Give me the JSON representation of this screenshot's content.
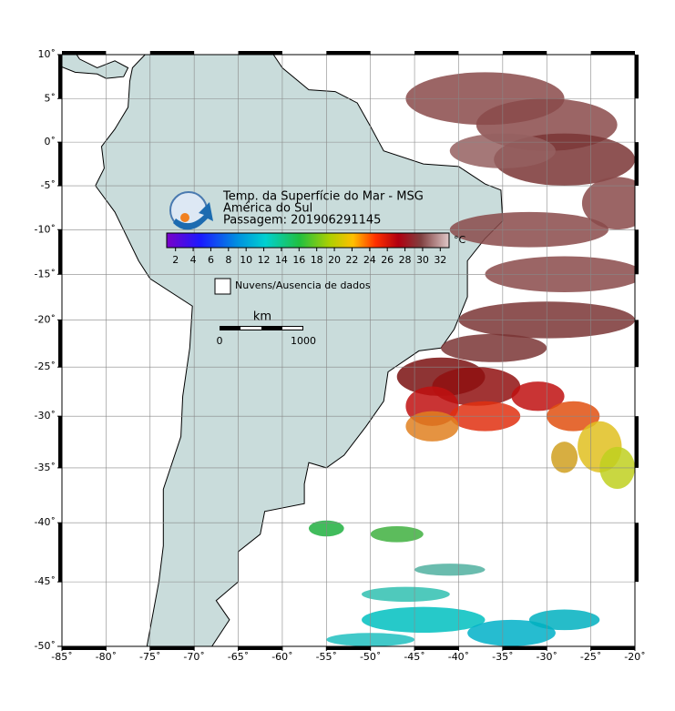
{
  "map": {
    "title_lines": [
      "Temp. da Superfície do Mar - MSG",
      "América do Sul",
      "Passagem: 201906291145"
    ],
    "xlim": [
      -85,
      -20
    ],
    "ylim": [
      -50,
      10
    ],
    "xticks": [
      {
        "value": -85,
        "label": "-85˚"
      },
      {
        "value": -80,
        "label": "-80˚"
      },
      {
        "value": -75,
        "label": "-75˚"
      },
      {
        "value": -70,
        "label": "-70˚"
      },
      {
        "value": -65,
        "label": "-65˚"
      },
      {
        "value": -60,
        "label": "-60˚"
      },
      {
        "value": -55,
        "label": "-55˚"
      },
      {
        "value": -50,
        "label": "-50˚"
      },
      {
        "value": -45,
        "label": "-45˚"
      },
      {
        "value": -40,
        "label": "-40˚"
      },
      {
        "value": -35,
        "label": "-35˚"
      },
      {
        "value": -30,
        "label": "-30˚"
      },
      {
        "value": -25,
        "label": "-25˚"
      },
      {
        "value": -20,
        "label": "-20˚"
      }
    ],
    "yticks": [
      {
        "value": 10,
        "label": "10˚"
      },
      {
        "value": 5,
        "label": "5˚"
      },
      {
        "value": 0,
        "label": "0˚"
      },
      {
        "value": -5,
        "label": "-5˚"
      },
      {
        "value": -10,
        "label": "-10˚"
      },
      {
        "value": -15,
        "label": "-15˚"
      },
      {
        "value": -20,
        "label": "-20˚"
      },
      {
        "value": -25,
        "label": "-25˚"
      },
      {
        "value": -30,
        "label": "-30˚"
      },
      {
        "value": -35,
        "label": "-35˚"
      },
      {
        "value": -40,
        "label": "-40˚"
      },
      {
        "value": -45,
        "label": "-45˚"
      },
      {
        "value": -50,
        "label": "-50˚"
      }
    ],
    "grid": true,
    "colorbar": {
      "range": [
        1,
        33
      ],
      "ticks": [
        2,
        4,
        6,
        8,
        10,
        12,
        14,
        16,
        18,
        20,
        22,
        24,
        26,
        28,
        30,
        32
      ],
      "unit": "°C"
    },
    "legend": "Nuvens/Ausencia de dados",
    "scale_bar": {
      "unit": "km",
      "labels": [
        "0",
        "1000"
      ]
    }
  }
}
